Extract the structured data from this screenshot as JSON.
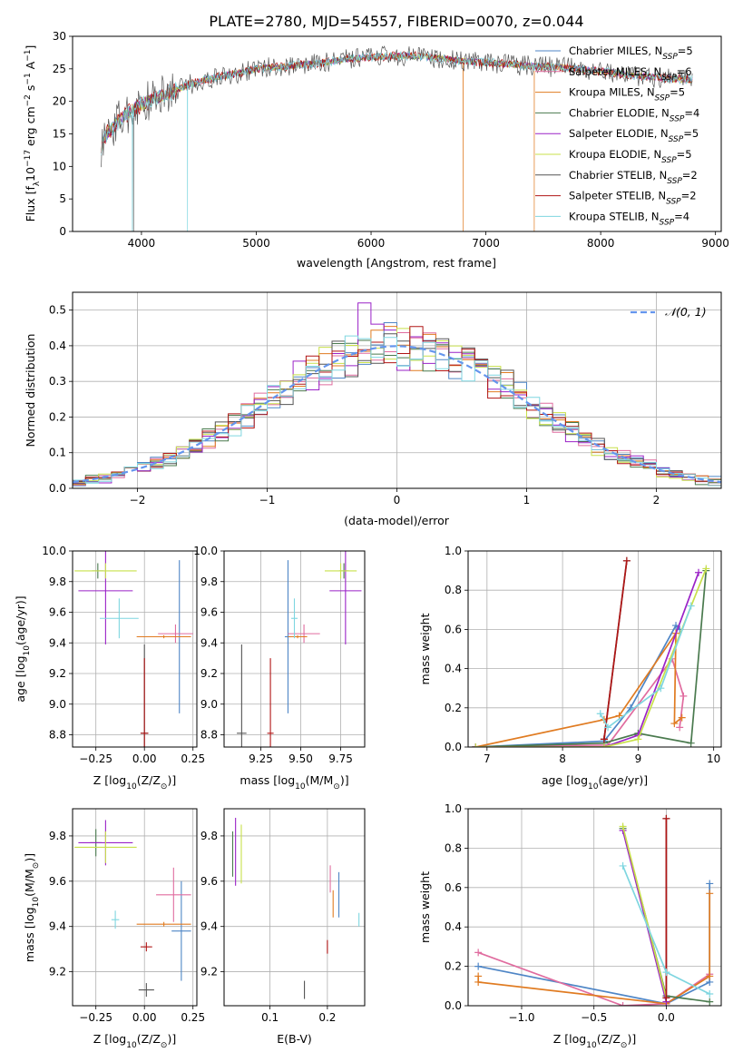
{
  "figure_title": "PLATE=2780, MJD=54557, FIBERID=0070, z=0.044",
  "colors": {
    "Chabrier MILES": "#4f86c6",
    "Salpeter MILES": "#e06c9f",
    "Kroupa MILES": "#e07b21",
    "Chabrier ELODIE": "#4a7a4e",
    "Salpeter ELODIE": "#9a22c7",
    "Kroupa ELODIE": "#c8e04a",
    "Chabrier STELIB": "#555555",
    "Salpeter STELIB": "#b01515",
    "Kroupa STELIB": "#7fd6e0",
    "Kroupa STELIB age": "#7fd6e0",
    "gaussian": "#6495ed"
  },
  "chart_data": [
    {
      "type": "line",
      "panel": "spectrum",
      "xlabel": "wavelength [Angstrom, rest frame]",
      "ylabel_parts": [
        "Flux [f",
        "λ",
        "10",
        "−17",
        " erg cm",
        "−2",
        " s",
        "−1",
        " A",
        "−1",
        "]"
      ],
      "xlim": [
        3400,
        9050
      ],
      "ylim": [
        0,
        30
      ],
      "xticks": [
        4000,
        5000,
        6000,
        7000,
        8000,
        9000
      ],
      "yticks": [
        0,
        5,
        10,
        15,
        20,
        25,
        30
      ],
      "grid": false,
      "legend_position": "top-right",
      "legend": [
        {
          "name": "Chabrier MILES",
          "sub": "SSP",
          "n": "5"
        },
        {
          "name": "Salpeter MILES",
          "sub": "SSP",
          "n": "6"
        },
        {
          "name": "Kroupa MILES",
          "sub": "SSP",
          "n": "5"
        },
        {
          "name": "Chabrier ELODIE",
          "sub": "SSP",
          "n": "4"
        },
        {
          "name": "Salpeter ELODIE",
          "sub": "SSP",
          "n": "5"
        },
        {
          "name": "Kroupa ELODIE",
          "sub": "SSP",
          "n": "5"
        },
        {
          "name": "Chabrier STELIB",
          "sub": "SSP",
          "n": "2"
        },
        {
          "name": "Salpeter STELIB",
          "sub": "SSP",
          "n": "2"
        },
        {
          "name": "Kroupa STELIB",
          "sub": "SSP",
          "n": "4"
        }
      ],
      "continuum": [
        [
          3650,
          13
        ],
        [
          3700,
          15
        ],
        [
          3800,
          17
        ],
        [
          3900,
          18.5
        ],
        [
          4000,
          19.5
        ],
        [
          4200,
          21
        ],
        [
          4400,
          22.5
        ],
        [
          4600,
          23.5
        ],
        [
          4800,
          24.2
        ],
        [
          5000,
          25
        ],
        [
          5200,
          25.3
        ],
        [
          5400,
          25.6
        ],
        [
          5600,
          26
        ],
        [
          5800,
          26.5
        ],
        [
          6000,
          26.8
        ],
        [
          6200,
          27
        ],
        [
          6400,
          27
        ],
        [
          6600,
          26.6
        ],
        [
          6800,
          26.2
        ],
        [
          7000,
          26
        ],
        [
          7200,
          25.7
        ],
        [
          7400,
          25.4
        ],
        [
          7600,
          25.3
        ],
        [
          7800,
          25
        ],
        [
          8000,
          24.6
        ],
        [
          8200,
          24.2
        ],
        [
          8400,
          23.8
        ],
        [
          8600,
          23.5
        ],
        [
          8800,
          23.3
        ]
      ],
      "dips": [
        {
          "series": "Kroupa STELIB",
          "x": 3920
        },
        {
          "series": "Kroupa STELIB",
          "x": 4400
        },
        {
          "series": "Chabrier STELIB",
          "x": 3930
        },
        {
          "series": "Kroupa MILES",
          "x": 6800
        },
        {
          "series": "Kroupa MILES",
          "x": 7420
        }
      ]
    },
    {
      "type": "line",
      "panel": "residuals",
      "xlabel": "(data-model)/error",
      "ylabel": "Normed distribution",
      "xlim": [
        -2.5,
        2.5
      ],
      "ylim": [
        0,
        0.55
      ],
      "xticks": [
        -2,
        -1,
        0,
        1,
        2
      ],
      "xtick_labels": [
        "−2",
        "−1",
        "0",
        "1",
        "2"
      ],
      "yticks": [
        0.0,
        0.1,
        0.2,
        0.3,
        0.4,
        0.5
      ],
      "grid": true,
      "legend_position": "top-right",
      "legend_label": "𝒩(0, 1)",
      "bin_width": 0.1,
      "bin_start": -2.5
    },
    {
      "type": "scatter",
      "panel": "age-vs-Z",
      "xlabel_parts": [
        "Z [log",
        "10",
        "(Z/Z",
        "⊙",
        ")]"
      ],
      "ylabel_parts": [
        "age  [log",
        "10",
        "(age/yr)]"
      ],
      "xlim": [
        -0.37,
        0.27
      ],
      "ylim": [
        8.72,
        10.0
      ],
      "xticks": [
        -0.25,
        0.0,
        0.25
      ],
      "xtick_labels": [
        "−0.25",
        "0.00",
        "0.25"
      ],
      "yticks": [
        8.8,
        9.0,
        9.2,
        9.4,
        9.6,
        9.8,
        10.0
      ],
      "grid": true,
      "points": [
        {
          "series": "Chabrier MILES",
          "x": 0.18,
          "y": 9.44,
          "xerr": 0.04,
          "yerr": 0.5
        },
        {
          "series": "Salpeter MILES",
          "x": 0.16,
          "y": 9.46,
          "xerr": 0.09,
          "yerr": 0.06
        },
        {
          "series": "Kroupa MILES",
          "x": 0.1,
          "y": 9.44,
          "xerr": 0.14,
          "yerr": 0.01
        },
        {
          "series": "Chabrier ELODIE",
          "x": -0.24,
          "y": 9.87,
          "xerr": 0.03,
          "yerr": 0.05
        },
        {
          "series": "Salpeter ELODIE",
          "x": -0.2,
          "y": 9.74,
          "xerr": 0.14,
          "yerr": 0.35
        },
        {
          "series": "Kroupa ELODIE",
          "x": -0.2,
          "y": 9.87,
          "xerr": 0.16,
          "yerr": 0.05
        },
        {
          "series": "Chabrier STELIB",
          "x": 0.0,
          "y": 8.81,
          "xerr": 0.02,
          "yerr": 0.58
        },
        {
          "series": "Salpeter STELIB",
          "x": 0.0,
          "y": 8.81,
          "xerr": 0.02,
          "yerr": 0.49
        },
        {
          "series": "Kroupa STELIB",
          "x": -0.13,
          "y": 9.56,
          "xerr": 0.1,
          "yerr": 0.13
        }
      ]
    },
    {
      "type": "scatter",
      "panel": "age-vs-mass",
      "xlabel_parts": [
        "mass [log",
        "10",
        "(M/M",
        "⊙",
        ")]"
      ],
      "xlim": [
        9.02,
        9.9
      ],
      "ylim": [
        8.72,
        10.0
      ],
      "xticks": [
        9.25,
        9.5,
        9.75
      ],
      "xtick_labels": [
        "9.25",
        "9.50",
        "9.75"
      ],
      "yticks": [
        8.8,
        9.0,
        9.2,
        9.4,
        9.6,
        9.8,
        10.0
      ],
      "grid": true,
      "points": [
        {
          "series": "Chabrier MILES",
          "x": 9.42,
          "y": 9.44,
          "xerr": 0.02,
          "yerr": 0.5
        },
        {
          "series": "Salpeter MILES",
          "x": 9.52,
          "y": 9.46,
          "xerr": 0.1,
          "yerr": 0.06
        },
        {
          "series": "Kroupa MILES",
          "x": 9.48,
          "y": 9.44,
          "xerr": 0.06,
          "yerr": 0.01
        },
        {
          "series": "Chabrier ELODIE",
          "x": 9.77,
          "y": 9.87,
          "xerr": 0.03,
          "yerr": 0.05
        },
        {
          "series": "Salpeter ELODIE",
          "x": 9.78,
          "y": 9.74,
          "xerr": 0.1,
          "yerr": 0.35
        },
        {
          "series": "Kroupa ELODIE",
          "x": 9.75,
          "y": 9.87,
          "xerr": 0.1,
          "yerr": 0.05
        },
        {
          "series": "Chabrier STELIB",
          "x": 9.13,
          "y": 8.81,
          "xerr": 0.03,
          "yerr": 0.58
        },
        {
          "series": "Salpeter STELIB",
          "x": 9.31,
          "y": 8.81,
          "xerr": 0.02,
          "yerr": 0.49
        },
        {
          "series": "Kroupa STELIB",
          "x": 9.46,
          "y": 9.56,
          "xerr": 0.02,
          "yerr": 0.13
        }
      ]
    },
    {
      "type": "line",
      "panel": "weight-vs-age",
      "xlabel_parts": [
        "age  [log",
        "10",
        "(age/yr)]"
      ],
      "ylabel": "mass weight",
      "xlim": [
        6.75,
        10.1
      ],
      "ylim": [
        0,
        1.0
      ],
      "xticks": [
        7,
        8,
        9,
        10
      ],
      "yticks": [
        0.0,
        0.2,
        0.4,
        0.6,
        0.8,
        1.0
      ],
      "grid": true,
      "series": [
        {
          "name": "Chabrier MILES",
          "points": [
            [
              6.85,
              0.0
            ],
            [
              8.55,
              0.03
            ],
            [
              8.9,
              0.2
            ],
            [
              9.5,
              0.62
            ],
            [
              9.55,
              0.6
            ]
          ]
        },
        {
          "name": "Salpeter MILES",
          "points": [
            [
              6.85,
              0.0
            ],
            [
              8.6,
              0.01
            ],
            [
              9.45,
              0.45
            ],
            [
              9.6,
              0.26
            ],
            [
              9.55,
              0.1
            ]
          ]
        },
        {
          "name": "Kroupa MILES",
          "points": [
            [
              6.85,
              0.0
            ],
            [
              8.55,
              0.14
            ],
            [
              8.75,
              0.16
            ],
            [
              9.5,
              0.58
            ],
            [
              9.48,
              0.12
            ],
            [
              9.58,
              0.15
            ]
          ]
        },
        {
          "name": "Chabrier ELODIE",
          "points": [
            [
              6.85,
              0.0
            ],
            [
              8.55,
              0.02
            ],
            [
              9.0,
              0.07
            ],
            [
              9.7,
              0.02
            ],
            [
              9.9,
              0.9
            ]
          ]
        },
        {
          "name": "Salpeter ELODIE",
          "points": [
            [
              6.85,
              0.0
            ],
            [
              8.55,
              0.0
            ],
            [
              9.0,
              0.06
            ],
            [
              9.8,
              0.89
            ]
          ]
        },
        {
          "name": "Kroupa ELODIE",
          "points": [
            [
              6.85,
              0.0
            ],
            [
              8.55,
              0.0
            ],
            [
              9.0,
              0.04
            ],
            [
              9.9,
              0.91
            ]
          ]
        },
        {
          "name": "Chabrier STELIB",
          "points": [
            [
              8.55,
              0.04
            ],
            [
              8.85,
              0.95
            ]
          ]
        },
        {
          "name": "Salpeter STELIB",
          "points": [
            [
              8.55,
              0.04
            ],
            [
              8.85,
              0.95
            ]
          ]
        },
        {
          "name": "Kroupa STELIB",
          "points": [
            [
              8.5,
              0.17
            ],
            [
              8.6,
              0.1
            ],
            [
              9.3,
              0.3
            ],
            [
              9.7,
              0.72
            ]
          ]
        }
      ]
    },
    {
      "type": "scatter",
      "panel": "mass-vs-Z",
      "xlabel_parts": [
        "Z [log",
        "10",
        "(Z/Z",
        "⊙",
        ")]"
      ],
      "ylabel_parts": [
        "mass [log",
        "10",
        "(M/M",
        "⊙",
        ")]"
      ],
      "xlim": [
        -0.37,
        0.27
      ],
      "ylim": [
        9.05,
        9.92
      ],
      "xticks": [
        -0.25,
        0.0,
        0.25
      ],
      "xtick_labels": [
        "−0.25",
        "0.00",
        "0.25"
      ],
      "yticks": [
        9.2,
        9.4,
        9.6,
        9.8
      ],
      "grid": true,
      "points": [
        {
          "series": "Chabrier MILES",
          "x": 0.19,
          "y": 9.38,
          "xerr": 0.05,
          "yerr": 0.22
        },
        {
          "series": "Salpeter MILES",
          "x": 0.15,
          "y": 9.54,
          "xerr": 0.09,
          "yerr": 0.12
        },
        {
          "series": "Kroupa MILES",
          "x": 0.1,
          "y": 9.41,
          "xerr": 0.14,
          "yerr": 0.01
        },
        {
          "series": "Chabrier ELODIE",
          "x": -0.25,
          "y": 9.77,
          "xerr": 0.03,
          "yerr": 0.06
        },
        {
          "series": "Salpeter ELODIE",
          "x": -0.2,
          "y": 9.77,
          "xerr": 0.14,
          "yerr": 0.1
        },
        {
          "series": "Kroupa ELODIE",
          "x": -0.2,
          "y": 9.75,
          "xerr": 0.16,
          "yerr": 0.07
        },
        {
          "series": "Chabrier STELIB",
          "x": 0.01,
          "y": 9.12,
          "xerr": 0.04,
          "yerr": 0.03
        },
        {
          "series": "Salpeter STELIB",
          "x": 0.01,
          "y": 9.31,
          "xerr": 0.03,
          "yerr": 0.02
        },
        {
          "series": "Kroupa STELIB",
          "x": -0.15,
          "y": 9.43,
          "xerr": 0.02,
          "yerr": 0.04
        }
      ]
    },
    {
      "type": "scatter",
      "panel": "mass-vs-ebv",
      "xlabel": "E(B-V)",
      "xlim": [
        0.02,
        0.265
      ],
      "ylim": [
        9.05,
        9.92
      ],
      "xticks": [
        0.1,
        0.2
      ],
      "yticks": [
        9.2,
        9.4,
        9.6,
        9.8
      ],
      "grid": true,
      "points": [
        {
          "series": "Chabrier MILES",
          "x": 0.22,
          "y": 9.54,
          "xerr": 0.0,
          "yerr": 0.1
        },
        {
          "series": "Salpeter MILES",
          "x": 0.205,
          "y": 9.61,
          "xerr": 0.0,
          "yerr": 0.06
        },
        {
          "series": "Kroupa MILES",
          "x": 0.21,
          "y": 9.5,
          "xerr": 0.0,
          "yerr": 0.06
        },
        {
          "series": "Chabrier ELODIE",
          "x": 0.035,
          "y": 9.72,
          "xerr": 0.0,
          "yerr": 0.1
        },
        {
          "series": "Salpeter ELODIE",
          "x": 0.04,
          "y": 9.73,
          "xerr": 0.0,
          "yerr": 0.15
        },
        {
          "series": "Kroupa ELODIE",
          "x": 0.05,
          "y": 9.72,
          "xerr": 0.0,
          "yerr": 0.13
        },
        {
          "series": "Chabrier STELIB",
          "x": 0.16,
          "y": 9.12,
          "xerr": 0.0,
          "yerr": 0.04
        },
        {
          "series": "Salpeter STELIB",
          "x": 0.2,
          "y": 9.31,
          "xerr": 0.0,
          "yerr": 0.03
        },
        {
          "series": "Kroupa STELIB",
          "x": 0.255,
          "y": 9.43,
          "xerr": 0.0,
          "yerr": 0.03
        }
      ]
    },
    {
      "type": "line",
      "panel": "weight-vs-Z",
      "xlabel_parts": [
        "Z [log",
        "10",
        "(Z/Z",
        "⊙",
        ")]"
      ],
      "ylabel": "mass weight",
      "xlim": [
        -1.37,
        0.38
      ],
      "ylim": [
        0,
        1.0
      ],
      "xticks": [
        -1.0,
        -0.5,
        0.0
      ],
      "xtick_labels": [
        "−1.0",
        "−0.5",
        "0.0"
      ],
      "yticks": [
        0.0,
        0.2,
        0.4,
        0.6,
        0.8,
        1.0
      ],
      "grid": true,
      "series": [
        {
          "name": "Chabrier MILES",
          "points": [
            [
              -1.3,
              0.2
            ],
            [
              0.0,
              0.01
            ],
            [
              0.3,
              0.12
            ],
            [
              0.3,
              0.62
            ]
          ]
        },
        {
          "name": "Salpeter MILES",
          "points": [
            [
              -1.3,
              0.27
            ],
            [
              -0.3,
              0.0
            ],
            [
              0.0,
              0.01
            ],
            [
              0.3,
              0.16
            ]
          ]
        },
        {
          "name": "Kroupa MILES",
          "points": [
            [
              -1.3,
              0.15
            ],
            [
              -1.3,
              0.12
            ],
            [
              0.0,
              0.01
            ],
            [
              0.3,
              0.15
            ],
            [
              0.3,
              0.57
            ]
          ]
        },
        {
          "name": "Chabrier ELODIE",
          "points": [
            [
              -0.3,
              0.9
            ],
            [
              0.0,
              0.05
            ],
            [
              0.3,
              0.02
            ]
          ]
        },
        {
          "name": "Salpeter ELODIE",
          "points": [
            [
              -0.3,
              0.89
            ],
            [
              0.0,
              0.02
            ]
          ]
        },
        {
          "name": "Kroupa ELODIE",
          "points": [
            [
              -0.3,
              0.91
            ],
            [
              0.0,
              0.04
            ]
          ]
        },
        {
          "name": "Chabrier STELIB",
          "points": [
            [
              0.0,
              0.95
            ],
            [
              0.0,
              0.04
            ]
          ]
        },
        {
          "name": "Salpeter STELIB",
          "points": [
            [
              0.0,
              0.95
            ],
            [
              0.0,
              0.04
            ]
          ]
        },
        {
          "name": "Kroupa STELIB",
          "points": [
            [
              -0.3,
              0.71
            ],
            [
              0.0,
              0.17
            ],
            [
              0.3,
              0.06
            ]
          ]
        }
      ]
    }
  ]
}
